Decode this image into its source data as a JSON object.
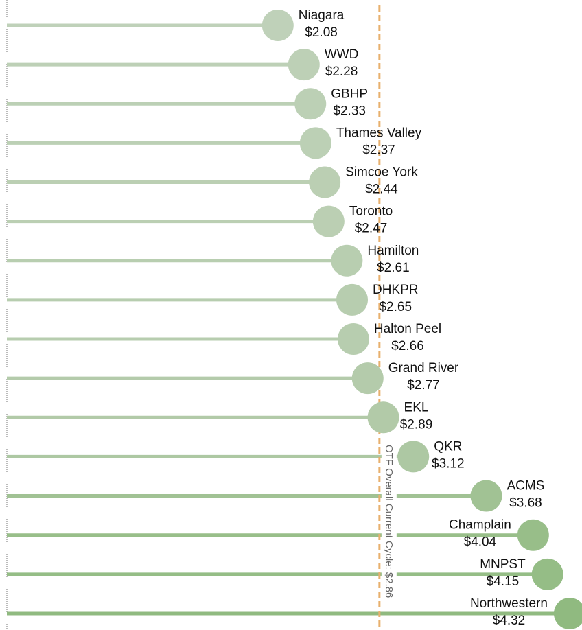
{
  "chart_data": {
    "type": "lollipop",
    "categories": [
      "Niagara",
      "WWD",
      "GBHP",
      "Thames Valley",
      "Simcoe York",
      "Toronto",
      "Hamilton",
      "DHKPR",
      "Halton Peel",
      "Grand River",
      "EKL",
      "QKR",
      "ACMS",
      "Champlain",
      "MNPST",
      "Northwestern"
    ],
    "values": [
      2.08,
      2.28,
      2.33,
      2.37,
      2.44,
      2.47,
      2.61,
      2.65,
      2.66,
      2.77,
      2.89,
      3.12,
      3.68,
      4.04,
      4.15,
      4.32
    ],
    "value_labels": [
      "$2.08",
      "$2.28",
      "$2.33",
      "$2.37",
      "$2.44",
      "$2.47",
      "$2.61",
      "$2.65",
      "$2.66",
      "$2.77",
      "$2.89",
      "$3.12",
      "$3.68",
      "$4.04",
      "$4.15",
      "$4.32"
    ],
    "colors": [
      "#bfd1b9",
      "#bdd0b6",
      "#bcd0b5",
      "#bcd0b5",
      "#bbcfb3",
      "#bbcfb3",
      "#b8ceb0",
      "#b7cdaf",
      "#b7cdaf",
      "#b4cbab",
      "#b2caa8",
      "#adc8a3",
      "#a1c294",
      "#98be89",
      "#95bd86",
      "#90ba80"
    ],
    "xlim": [
      0,
      4.415
    ],
    "reference_line": {
      "value": 2.86,
      "label": "OTF Overall Current Cycle: $2.86",
      "color": "#e8b06e"
    }
  }
}
